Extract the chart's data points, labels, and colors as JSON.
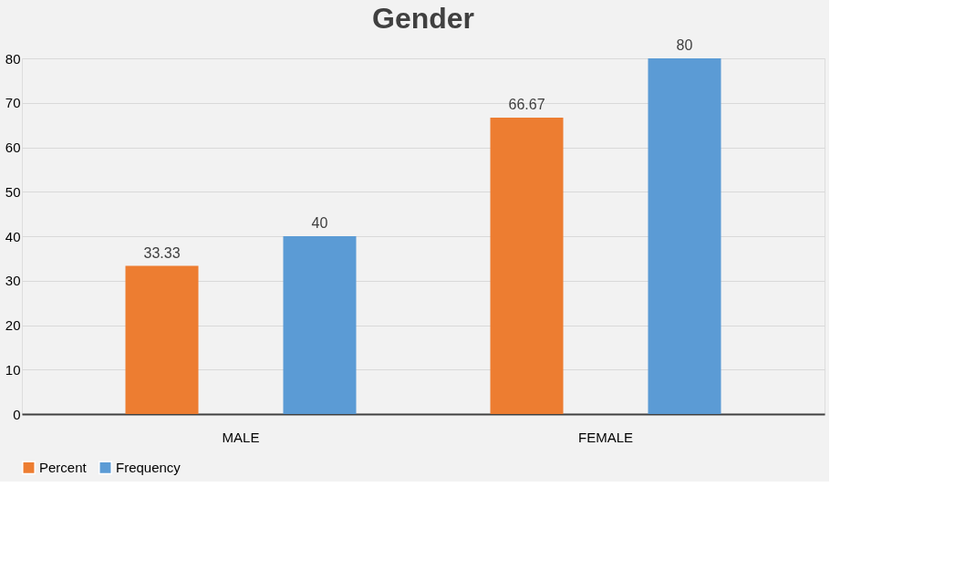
{
  "chart_data": {
    "type": "bar",
    "title": "Gender",
    "categories": [
      "MALE",
      "FEMALE"
    ],
    "series": [
      {
        "name": "Percent",
        "color": "#ed7d31",
        "values": [
          33.33,
          66.67
        ]
      },
      {
        "name": "Frequency",
        "color": "#5b9bd5",
        "values": [
          40,
          80
        ]
      }
    ],
    "ylim": [
      0,
      80
    ],
    "yticks": [
      0,
      10,
      20,
      30,
      40,
      50,
      60,
      70,
      80
    ],
    "grid": "y",
    "legend": "bottom",
    "data_labels": true
  }
}
